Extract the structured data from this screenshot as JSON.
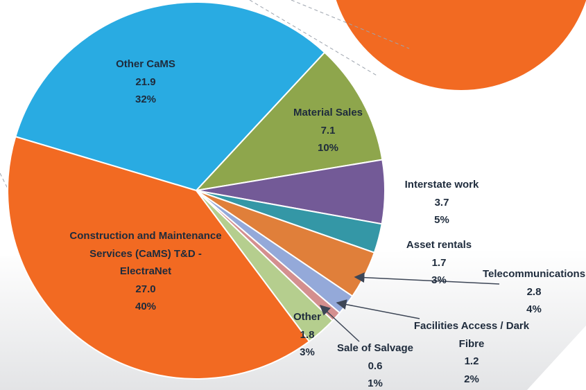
{
  "chart_data": {
    "type": "pie",
    "categories": [
      "Other CaMS",
      "Material Sales",
      "Interstate work",
      "Asset rentals",
      "Telecommunications",
      "Facilities Access / Dark Fibre",
      "Sale of Salvage",
      "Other",
      "Construction and Maintenance Services (CaMS) T&D - ElectraNet"
    ],
    "values": [
      21.9,
      7.1,
      3.7,
      1.7,
      2.8,
      1.2,
      0.6,
      1.8,
      27.0
    ],
    "value_labels": [
      "21.9",
      "7.1",
      "3.7",
      "1.7",
      "2.8",
      "1.2",
      "0.6",
      "1.8",
      "27.0"
    ],
    "percent_labels": [
      "32%",
      "10%",
      "5%",
      "3%",
      "4%",
      "2%",
      "1%",
      "3%",
      "40%"
    ],
    "colors": [
      "#29abe2",
      "#8ea64c",
      "#735a97",
      "#3497a6",
      "#e07f3a",
      "#94a9d9",
      "#d48f8f",
      "#b5ce8e",
      "#f26a22"
    ]
  }
}
